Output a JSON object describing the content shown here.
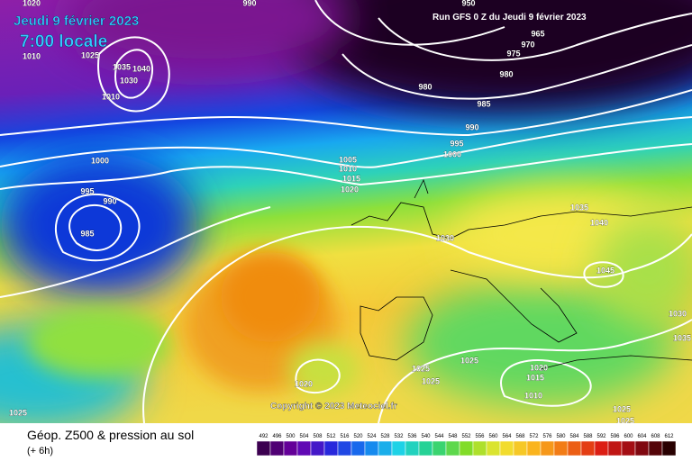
{
  "header": {
    "date": "Jeudi 9 février 2023",
    "time": "7:00 locale",
    "run": "Run GFS 0 Z du Jeudi 9 février 2023"
  },
  "footer": {
    "copyright": "Copyright © 2023 Meteociel.fr",
    "title": "Géop. Z500 & pression au sol",
    "step": "(+ 6h)"
  },
  "isobar_labels": [
    "1020",
    "990",
    "950",
    "1010",
    "1025",
    "1035",
    "1040",
    "1030",
    "1010",
    "965",
    "970",
    "975",
    "980",
    "980",
    "985",
    "990",
    "995",
    "1000",
    "1005",
    "1010",
    "1015",
    "1020",
    "1000",
    "995",
    "990",
    "985",
    "1030",
    "1035",
    "1040",
    "1045",
    "1030",
    "1035",
    "1025",
    "1025",
    "1025",
    "1020",
    "1015",
    "1010",
    "1020",
    "1025",
    "1025",
    "1025"
  ],
  "legend": {
    "labels": [
      "492",
      "496",
      "500",
      "504",
      "508",
      "512",
      "516",
      "520",
      "524",
      "528",
      "532",
      "536",
      "540",
      "544",
      "548",
      "552",
      "556",
      "560",
      "564",
      "568",
      "572",
      "576",
      "580",
      "584",
      "588",
      "592",
      "596",
      "600",
      "604",
      "608",
      "612"
    ]
  }
}
